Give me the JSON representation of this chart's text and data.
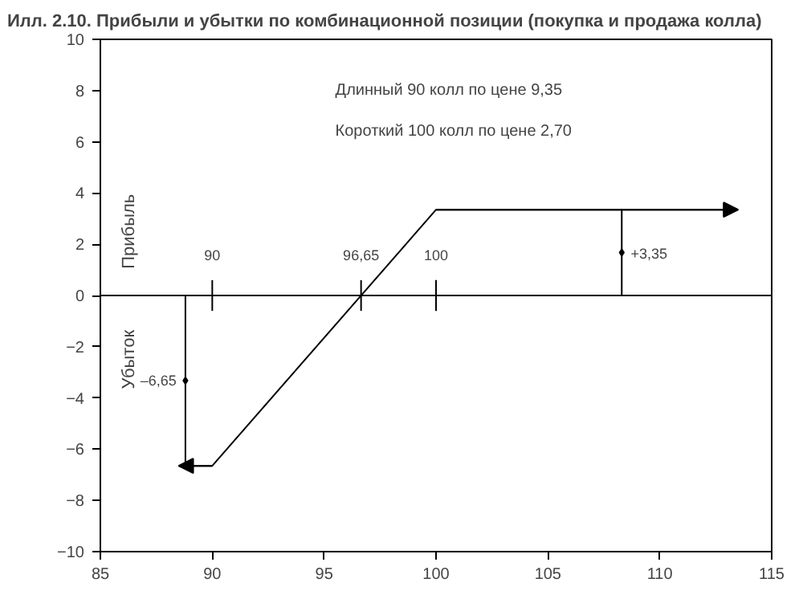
{
  "chart_data": {
    "type": "line",
    "title": "Илл. 2.10. Прибыли и убытки по комбинационной позиции (покупка и продажа колла)",
    "ylabel": "Прибыль",
    "y2label": "Убыток",
    "x": [
      88.5,
      90,
      100,
      113.5
    ],
    "series": [
      {
        "color": "#000000",
        "values": [
          -6.65,
          -6.65,
          3.35,
          3.35
        ]
      },
      {
        "type": "scatter",
        "marker": "diamond",
        "color": "#000000",
        "x": [
          88.8,
          108.3
        ],
        "values": [
          -3.325,
          1.675
        ],
        "errors": [
          3.325,
          1.675
        ]
      }
    ],
    "xlim": [
      85,
      115
    ],
    "xticks": [
      85,
      90,
      95,
      100,
      105,
      110,
      115
    ],
    "ylim": [
      -10,
      10
    ],
    "yticks": [
      -10,
      -8,
      -6,
      -4,
      -2,
      0,
      2,
      4,
      6,
      8,
      10
    ],
    "grid": false,
    "marker": "none",
    "line_style": "solid",
    "ref_lines": [
      {
        "axis": "y",
        "value": 0,
        "color": "#000000"
      }
    ],
    "annotations": [
      "Длинный 90 колл по цене 9,35",
      "Короткий 100 колл по цене 2,70",
      {
        "text": "90",
        "x": 90,
        "y": 0
      },
      {
        "text": "96,65",
        "x": 96.65,
        "y": 0
      },
      {
        "text": "100",
        "x": 100,
        "y": 0
      },
      {
        "text": "–6,65",
        "x": 88.8,
        "y": -3.325
      },
      {
        "text": "+3,35",
        "x": 108.3,
        "y": 1.675
      }
    ]
  }
}
